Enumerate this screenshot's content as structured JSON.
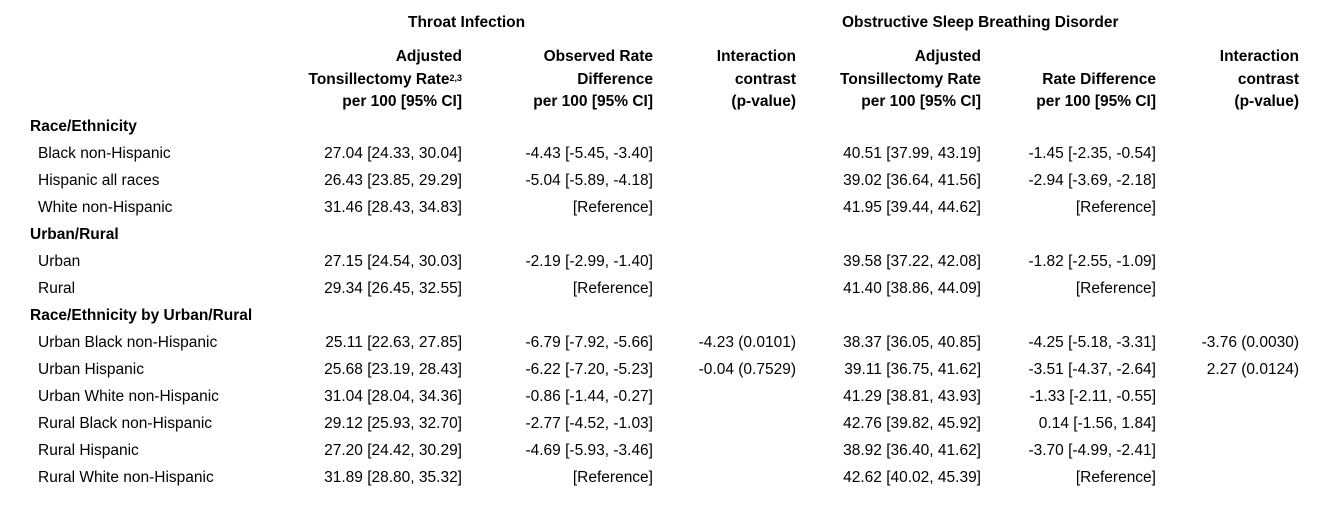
{
  "groups": {
    "throat": "Throat Infection",
    "osbd": "Obstructive Sleep Breathing Disorder"
  },
  "headers": {
    "ti_rate": [
      "Adjusted",
      "Tonsillectomy Rate",
      "per 100 [95% CI]"
    ],
    "ti_rate_sup": "2,3",
    "ti_diff": [
      "Observed Rate",
      "Difference",
      "per 100 [95% CI]"
    ],
    "ti_inter": [
      "Interaction",
      "contrast",
      "(p-value)"
    ],
    "os_rate": [
      "Adjusted",
      "Tonsillectomy Rate",
      "per 100 [95% CI]"
    ],
    "os_diff": [
      "Rate Difference",
      "per 100 [95% CI]"
    ],
    "os_inter": [
      "Interaction",
      "contrast",
      "(p-value)"
    ]
  },
  "rows": [
    {
      "type": "section",
      "label": "Race/Ethnicity"
    },
    {
      "type": "data",
      "label": "Black non-Hispanic",
      "ti_rate": "27.04 [24.33, 30.04]",
      "ti_diff": "-4.43 [-5.45, -3.40]",
      "ti_inter": "",
      "os_rate": "40.51 [37.99, 43.19]",
      "os_diff": "-1.45 [-2.35, -0.54]",
      "os_inter": ""
    },
    {
      "type": "data",
      "label": "Hispanic all races",
      "ti_rate": "26.43 [23.85, 29.29]",
      "ti_diff": "-5.04 [-5.89, -4.18]",
      "ti_inter": "",
      "os_rate": "39.02 [36.64, 41.56]",
      "os_diff": "-2.94 [-3.69, -2.18]",
      "os_inter": ""
    },
    {
      "type": "data",
      "label": "White non-Hispanic",
      "ti_rate": "31.46 [28.43, 34.83]",
      "ti_diff": "[Reference]",
      "ti_inter": "",
      "os_rate": "41.95 [39.44, 44.62]",
      "os_diff": "[Reference]",
      "os_inter": ""
    },
    {
      "type": "section",
      "label": "Urban/Rural"
    },
    {
      "type": "data",
      "label": "Urban",
      "ti_rate": "27.15 [24.54, 30.03]",
      "ti_diff": "-2.19 [-2.99, -1.40]",
      "ti_inter": "",
      "os_rate": "39.58 [37.22, 42.08]",
      "os_diff": "-1.82 [-2.55, -1.09]",
      "os_inter": ""
    },
    {
      "type": "data",
      "label": "Rural",
      "ti_rate": "29.34 [26.45, 32.55]",
      "ti_diff": "[Reference]",
      "ti_inter": "",
      "os_rate": "41.40 [38.86, 44.09]",
      "os_diff": "[Reference]",
      "os_inter": ""
    },
    {
      "type": "section",
      "label": "Race/Ethnicity by Urban/Rural"
    },
    {
      "type": "data",
      "label": "Urban Black non-Hispanic",
      "ti_rate": "25.11 [22.63, 27.85]",
      "ti_diff": "-6.79 [-7.92, -5.66]",
      "ti_inter": "-4.23 (0.0101)",
      "os_rate": "38.37 [36.05, 40.85]",
      "os_diff": "-4.25 [-5.18, -3.31]",
      "os_inter": "-3.76 (0.0030)"
    },
    {
      "type": "data",
      "label": "Urban Hispanic",
      "ti_rate": "25.68 [23.19, 28.43]",
      "ti_diff": "-6.22 [-7.20, -5.23]",
      "ti_inter": "-0.04 (0.7529)",
      "os_rate": "39.11 [36.75, 41.62]",
      "os_diff": "-3.51 [-4.37, -2.64]",
      "os_inter": "2.27 (0.0124)"
    },
    {
      "type": "data",
      "label": "Urban White non-Hispanic",
      "ti_rate": "31.04 [28.04, 34.36]",
      "ti_diff": "-0.86 [-1.44, -0.27]",
      "ti_inter": "",
      "os_rate": "41.29 [38.81, 43.93]",
      "os_diff": "-1.33 [-2.11, -0.55]",
      "os_inter": ""
    },
    {
      "type": "data",
      "label": "Rural Black non-Hispanic",
      "ti_rate": "29.12 [25.93, 32.70]",
      "ti_diff": "-2.77 [-4.52, -1.03]",
      "ti_inter": "",
      "os_rate": "42.76 [39.82, 45.92]",
      "os_diff": "0.14 [-1.56, 1.84]",
      "os_inter": ""
    },
    {
      "type": "data",
      "label": "Rural Hispanic",
      "ti_rate": "27.20 [24.42, 30.29]",
      "ti_diff": "-4.69 [-5.93, -3.46]",
      "ti_inter": "",
      "os_rate": "38.92 [36.40, 41.62]",
      "os_diff": "-3.70 [-4.99, -2.41]",
      "os_inter": ""
    },
    {
      "type": "data",
      "label": "Rural White non-Hispanic",
      "ti_rate": "31.89 [28.80, 35.32]",
      "ti_diff": "[Reference]",
      "ti_inter": "",
      "os_rate": "42.62 [40.02, 45.39]",
      "os_diff": "[Reference]",
      "os_inter": ""
    }
  ]
}
